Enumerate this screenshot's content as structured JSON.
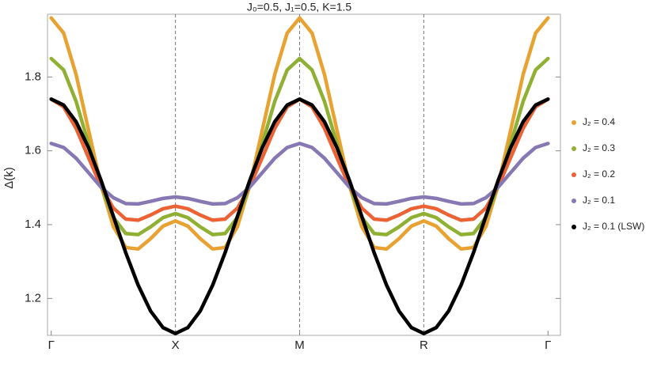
{
  "chart_data": {
    "type": "line",
    "title": "J₀=0.5, J₁=0.5, K=1.5",
    "y_label": "Δ(k)",
    "x": [
      0,
      0.1,
      0.2,
      0.3,
      0.4,
      0.5,
      0.6,
      0.7,
      0.8,
      0.9,
      1,
      1.1,
      1.2,
      1.3,
      1.4,
      1.5,
      1.6,
      1.7,
      1.8,
      1.9,
      2,
      2.1,
      2.2,
      2.3,
      2.4,
      2.5,
      2.6,
      2.7,
      2.8,
      2.9,
      3,
      3.1,
      3.2,
      3.3,
      3.4,
      3.5,
      3.6,
      3.7,
      3.8,
      3.9,
      4
    ],
    "xlim": [
      -0.03,
      4.1
    ],
    "xticks": [
      {
        "value": 0,
        "label": "Γ"
      },
      {
        "value": 1,
        "label": "X"
      },
      {
        "value": 2,
        "label": "M"
      },
      {
        "value": 3,
        "label": "R"
      },
      {
        "value": 4,
        "label": "Γ"
      }
    ],
    "ylim": [
      1.1,
      1.97
    ],
    "yticks": [
      1.2,
      1.4,
      1.6,
      1.8
    ],
    "grid": true,
    "legend": "right",
    "series": [
      {
        "name": "J₂ = 0.4",
        "color": "#e8a232",
        "values": [
          1.96,
          1.919,
          1.807,
          1.657,
          1.508,
          1.395,
          1.338,
          1.334,
          1.362,
          1.396,
          1.41,
          1.396,
          1.362,
          1.334,
          1.338,
          1.395,
          1.508,
          1.657,
          1.807,
          1.919,
          1.96,
          1.919,
          1.807,
          1.657,
          1.508,
          1.395,
          1.338,
          1.334,
          1.362,
          1.396,
          1.41,
          1.396,
          1.362,
          1.334,
          1.338,
          1.395,
          1.508,
          1.657,
          1.807,
          1.919,
          1.96
        ]
      },
      {
        "name": "J₂ = 0.3",
        "color": "#8fb032",
        "values": [
          1.85,
          1.819,
          1.734,
          1.62,
          1.506,
          1.42,
          1.376,
          1.373,
          1.394,
          1.419,
          1.43,
          1.419,
          1.394,
          1.373,
          1.376,
          1.42,
          1.506,
          1.62,
          1.734,
          1.819,
          1.85,
          1.819,
          1.734,
          1.62,
          1.506,
          1.42,
          1.376,
          1.373,
          1.394,
          1.419,
          1.43,
          1.419,
          1.394,
          1.373,
          1.376,
          1.42,
          1.506,
          1.62,
          1.734,
          1.819,
          1.85
        ]
      },
      {
        "name": "J₂ = 0.2",
        "color": "#eb6235",
        "values": [
          1.74,
          1.719,
          1.661,
          1.582,
          1.504,
          1.445,
          1.415,
          1.412,
          1.426,
          1.443,
          1.45,
          1.443,
          1.426,
          1.412,
          1.415,
          1.445,
          1.504,
          1.582,
          1.661,
          1.719,
          1.74,
          1.719,
          1.661,
          1.582,
          1.504,
          1.445,
          1.415,
          1.412,
          1.426,
          1.443,
          1.45,
          1.443,
          1.426,
          1.412,
          1.415,
          1.445,
          1.504,
          1.582,
          1.661,
          1.719,
          1.74
        ]
      },
      {
        "name": "J₂ = 0.1",
        "color": "#8778b3",
        "values": [
          1.62,
          1.609,
          1.58,
          1.541,
          1.502,
          1.473,
          1.457,
          1.456,
          1.463,
          1.471,
          1.475,
          1.471,
          1.463,
          1.456,
          1.457,
          1.473,
          1.502,
          1.541,
          1.58,
          1.609,
          1.62,
          1.609,
          1.58,
          1.541,
          1.502,
          1.473,
          1.457,
          1.456,
          1.463,
          1.471,
          1.475,
          1.471,
          1.463,
          1.456,
          1.457,
          1.473,
          1.502,
          1.541,
          1.58,
          1.609,
          1.62
        ]
      },
      {
        "name": "J₂ = 0.1 (LSW)",
        "color": "#000000",
        "values": [
          1.74,
          1.724,
          1.679,
          1.609,
          1.521,
          1.423,
          1.324,
          1.236,
          1.166,
          1.121,
          1.105,
          1.121,
          1.166,
          1.236,
          1.324,
          1.423,
          1.521,
          1.609,
          1.679,
          1.724,
          1.74,
          1.724,
          1.679,
          1.609,
          1.521,
          1.423,
          1.324,
          1.236,
          1.166,
          1.121,
          1.105,
          1.121,
          1.166,
          1.236,
          1.324,
          1.423,
          1.521,
          1.609,
          1.679,
          1.724,
          1.74
        ]
      }
    ]
  }
}
